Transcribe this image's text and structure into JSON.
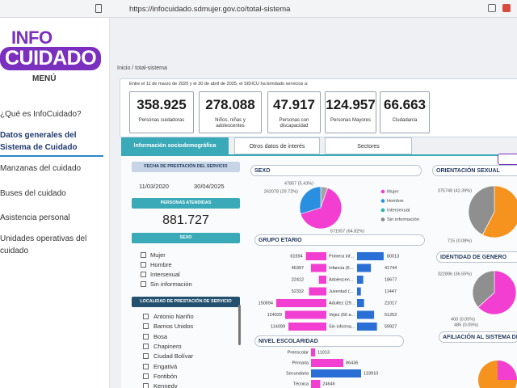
{
  "browser": {
    "url": "https://infocuidado.sdmujer.gov.co/total-sistema"
  },
  "sidebar": {
    "logo_top": "INFO",
    "logo_bottom": "CUIDADO",
    "menu_title": "MENÚ",
    "items": [
      "¿Qué es InfoCuidado?",
      "Datos generales del Sistema de Cuidado",
      "Manzanas del cuidado",
      "Buses del cuidado",
      "Asistencia personal",
      "Unidades operativas del cuidado"
    ]
  },
  "breadcrumb": "Inicio / total-sistema",
  "intro": "Entre el 11 de marzo de 2020 y el 30 de abril de 2025, el SIDICU ha brindado servicios a:",
  "stats": [
    {
      "value": "358.925",
      "label": "Personas cuidadoras"
    },
    {
      "value": "278.088",
      "label": "Niños, niñas y adolescentes"
    },
    {
      "value": "47.917",
      "label": "Personas con discapacidad"
    },
    {
      "value": "124.957",
      "label": "Personas Mayores"
    },
    {
      "value": "66.663",
      "label": "Ciudadanía"
    }
  ],
  "tabs": [
    "Información sociodemográfica",
    "Otros datos de interés",
    "Sectores"
  ],
  "filters": {
    "date_title": "FECHA DE PRESTACIÓN DEL SERVICIO",
    "date_from": "11/03/2020",
    "date_to": "30/04/2025",
    "attended_title": "PERSONAS ATENDIDAS",
    "attended_value": "881.727",
    "sex_title": "SEXO",
    "sex_options": [
      "Mujer",
      "Hombre",
      "Intersexual",
      "Sin información"
    ],
    "locality_title": "LOCALIDAD DE PRESTACIÓN DE SERVICIO",
    "localities": [
      "Antonio Nariño",
      "Barrios Unidos",
      "Bosa",
      "Chapinero",
      "Ciudad Bolívar",
      "Engativá",
      "Fontibón",
      "Kennedy"
    ]
  },
  "sexo": {
    "title": "SEXO",
    "slices": [
      {
        "value": 5.43,
        "label": "47857 (5.43%)",
        "color": "#a3a3a3"
      },
      {
        "value": 64.82,
        "label": "571557 (64.82%)",
        "color": "#f23fd1"
      },
      {
        "value": 29.72,
        "label": "262078 (29.72%)",
        "color": "#2a8fe0"
      }
    ],
    "legend": [
      {
        "name": "Mujer",
        "color": "#f23fd1"
      },
      {
        "name": "Hombre",
        "color": "#2a8fe0"
      },
      {
        "name": "Intersexual",
        "color": "#27b5a6"
      },
      {
        "name": "Sin información",
        "color": "#8a8a8a"
      }
    ]
  },
  "grupo_etario": {
    "title": "GRUPO ETARIO",
    "categories": [
      "Primera inf...",
      "Infancia (6...",
      "Adolescen...",
      "Juventud (...",
      "Adultez (29...",
      "Vejez (60 a...",
      "Sin informa..."
    ],
    "left": [
      61594,
      46397,
      22412,
      52332,
      150694,
      124029,
      114099
    ],
    "right": [
      80013,
      41744,
      18677,
      11447,
      21017,
      51252,
      59927
    ],
    "left_color": "#f23fd1",
    "right_color": "#2a6fd6"
  },
  "escolaridad": {
    "title": "NIVEL ESCOLARIDAD",
    "categories": [
      "Preescolar",
      "Primaria",
      "Secundaria",
      "Técnica"
    ],
    "values": [
      11013,
      86436,
      133910,
      24646
    ],
    "colors": [
      "#f23fd1",
      "#f23fd1",
      "#2a6fd6",
      "#f23fd1"
    ]
  },
  "orientacion": {
    "title": "ORIENTACIÓN SEXUAL",
    "slices": [
      {
        "value": 57.53,
        "color": "#f5931e"
      },
      {
        "value": 0.08,
        "label": "715 (0.08%)",
        "color": "#2a8fe0"
      },
      {
        "value": 42.39,
        "label": "375748 (42.39%)",
        "color": "#8f8f8f"
      }
    ]
  },
  "identidad": {
    "title": "IDENTIDAD DE GENERO",
    "slices": [
      {
        "value": 63.35,
        "color": "#f23fd1"
      },
      {
        "value": 0.05,
        "label": "400 (0.05%)",
        "color": "#2a8fe0"
      },
      {
        "value": 0.05,
        "label": "485 (0.05%)",
        "color": "#27b5a6"
      },
      {
        "value": 36.55,
        "label": "322896 (36.55%)",
        "color": "#8f8f8f"
      }
    ]
  },
  "afiliacion": {
    "title": "AFILIACIÓN AL SISTEMA DE SALUD"
  }
}
